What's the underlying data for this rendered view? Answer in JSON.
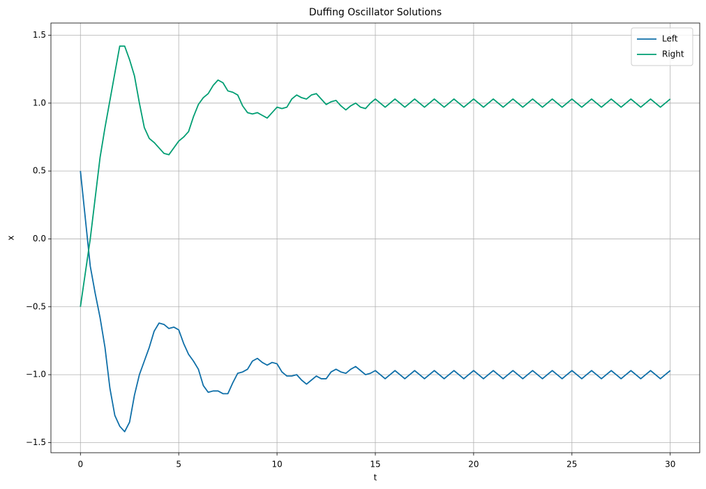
{
  "chart_data": {
    "type": "line",
    "title": "Duffing Oscillator Solutions",
    "x_label": "t",
    "y_label": "x",
    "x": [
      0,
      0.25,
      0.5,
      0.75,
      1,
      1.25,
      1.5,
      1.75,
      2,
      2.25,
      2.5,
      2.75,
      3,
      3.25,
      3.5,
      3.75,
      4,
      4.25,
      4.5,
      4.75,
      5,
      5.25,
      5.5,
      5.75,
      6,
      6.25,
      6.5,
      6.75,
      7,
      7.25,
      7.5,
      7.75,
      8,
      8.25,
      8.5,
      8.75,
      9,
      9.25,
      9.5,
      9.75,
      10,
      10.25,
      10.5,
      10.75,
      11,
      11.25,
      11.5,
      11.75,
      12,
      12.25,
      12.5,
      12.75,
      13,
      13.25,
      13.5,
      13.75,
      14,
      14.25,
      14.5,
      14.75,
      15,
      15.25,
      15.5,
      15.75,
      16,
      16.25,
      16.5,
      16.75,
      17,
      17.25,
      17.5,
      17.75,
      18,
      18.25,
      18.5,
      18.75,
      19,
      19.25,
      19.5,
      19.75,
      20,
      20.25,
      20.5,
      20.75,
      21,
      21.25,
      21.5,
      21.75,
      22,
      22.25,
      22.5,
      22.75,
      23,
      23.25,
      23.5,
      23.75,
      24,
      24.25,
      24.5,
      24.75,
      25,
      25.25,
      25.5,
      25.75,
      26,
      26.25,
      26.5,
      26.75,
      27,
      27.25,
      27.5,
      27.75,
      28,
      28.25,
      28.5,
      28.75,
      29,
      29.25,
      29.5,
      29.75,
      30
    ],
    "series": [
      {
        "name": "Left",
        "color": "#0f6fa8",
        "values": [
          0.5,
          0.15,
          -0.2,
          -0.4,
          -0.58,
          -0.8,
          -1.1,
          -1.3,
          -1.38,
          -1.42,
          -1.35,
          -1.15,
          -1.0,
          -0.9,
          -0.8,
          -0.68,
          -0.62,
          -0.63,
          -0.66,
          -0.65,
          -0.67,
          -0.77,
          -0.85,
          -0.9,
          -0.96,
          -1.08,
          -1.13,
          -1.12,
          -1.12,
          -1.14,
          -1.14,
          -1.06,
          -0.99,
          -0.98,
          -0.96,
          -0.9,
          -0.88,
          -0.91,
          -0.93,
          -0.91,
          -0.92,
          -0.98,
          -1.01,
          -1.01,
          -1.0,
          -1.04,
          -1.07,
          -1.04,
          -1.01,
          -1.03,
          -1.03,
          -0.98,
          -0.96,
          -0.98,
          -0.99,
          -0.96,
          -0.94,
          -0.97,
          -1.0,
          -0.99,
          -0.97,
          -1.0,
          -1.03,
          -1.0,
          -0.97,
          -1.0,
          -1.03,
          -1.0,
          -0.97,
          -1.0,
          -1.03,
          -1.0,
          -0.97,
          -1.0,
          -1.03,
          -1.0,
          -0.97,
          -1.0,
          -1.03,
          -1.0,
          -0.97,
          -1.0,
          -1.03,
          -1.0,
          -0.97,
          -1.0,
          -1.03,
          -1.0,
          -0.97,
          -1.0,
          -1.03,
          -1.0,
          -0.97,
          -1.0,
          -1.03,
          -1.0,
          -0.97,
          -1.0,
          -1.03,
          -1.0,
          -0.97,
          -1.0,
          -1.03,
          -1.0,
          -0.97,
          -1.0,
          -1.03,
          -1.0,
          -0.97,
          -1.0,
          -1.03,
          -1.0,
          -0.97,
          -1.0,
          -1.03,
          -1.0,
          -0.97,
          -1.0,
          -1.03,
          -1.0,
          -0.97
        ]
      },
      {
        "name": "Right",
        "color": "#009e73",
        "values": [
          -0.5,
          -0.25,
          0.0,
          0.3,
          0.6,
          0.82,
          1.02,
          1.22,
          1.42,
          1.42,
          1.32,
          1.2,
          1.0,
          0.82,
          0.74,
          0.71,
          0.67,
          0.63,
          0.62,
          0.67,
          0.72,
          0.75,
          0.79,
          0.9,
          0.99,
          1.04,
          1.07,
          1.13,
          1.17,
          1.15,
          1.09,
          1.08,
          1.06,
          0.98,
          0.93,
          0.92,
          0.93,
          0.91,
          0.89,
          0.93,
          0.97,
          0.96,
          0.97,
          1.03,
          1.06,
          1.04,
          1.03,
          1.06,
          1.07,
          1.03,
          0.99,
          1.01,
          1.02,
          0.98,
          0.95,
          0.98,
          1.0,
          0.97,
          0.96,
          1.0,
          1.03,
          1.0,
          0.97,
          1.0,
          1.03,
          1.0,
          0.97,
          1.0,
          1.03,
          1.0,
          0.97,
          1.0,
          1.03,
          1.0,
          0.97,
          1.0,
          1.03,
          1.0,
          0.97,
          1.0,
          1.03,
          1.0,
          0.97,
          1.0,
          1.03,
          1.0,
          0.97,
          1.0,
          1.03,
          1.0,
          0.97,
          1.0,
          1.03,
          1.0,
          0.97,
          1.0,
          1.03,
          1.0,
          0.97,
          1.0,
          1.03,
          1.0,
          0.97,
          1.0,
          1.03,
          1.0,
          0.97,
          1.0,
          1.03,
          1.0,
          0.97,
          1.0,
          1.03,
          1.0,
          0.97,
          1.0,
          1.03,
          1.0,
          0.97,
          1.0,
          1.03
        ]
      }
    ],
    "xlim": [
      -1.5,
      31.5
    ],
    "ylim": [
      -1.575,
      1.59
    ],
    "xticks": [
      0,
      5,
      10,
      15,
      20,
      25,
      30
    ],
    "yticks": [
      {
        "value": -1.5,
        "label": "−1.5"
      },
      {
        "value": -1.0,
        "label": "−1.0"
      },
      {
        "value": -0.5,
        "label": "−0.5"
      },
      {
        "value": 0,
        "label": "0.0"
      },
      {
        "value": 0.5,
        "label": "0.5"
      },
      {
        "value": 1.0,
        "label": "1.0"
      },
      {
        "value": 1.5,
        "label": "1.5"
      }
    ],
    "grid": true,
    "legend": "upper right"
  }
}
